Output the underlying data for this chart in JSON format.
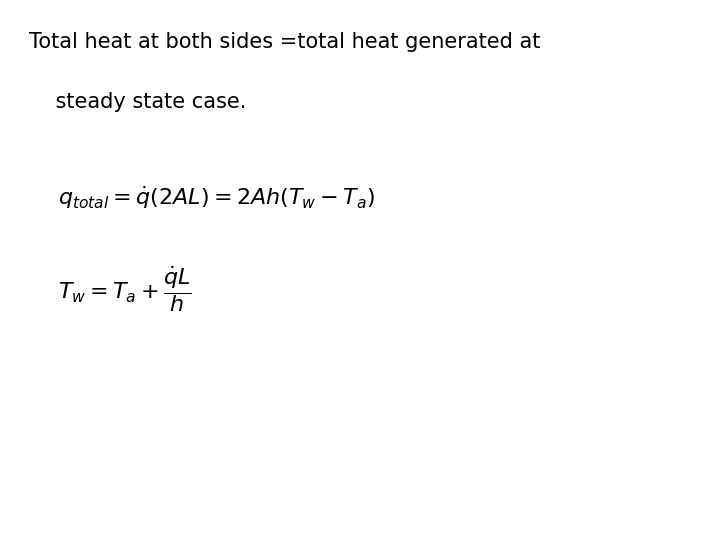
{
  "title_line1": "Total heat at both sides =total heat generated at",
  "title_line2": "    steady state case.",
  "eq1": "$q_{total} = \\dot{q}(2AL) = 2Ah(T_w - T_a)$",
  "eq2": "$T_w = T_a + \\dfrac{\\dot{q}L}{h}$",
  "bg_color": "#ffffff",
  "text_color": "#000000",
  "title_fontsize": 15,
  "eq_fontsize": 16,
  "fig_width": 7.2,
  "fig_height": 5.4,
  "dpi": 100
}
